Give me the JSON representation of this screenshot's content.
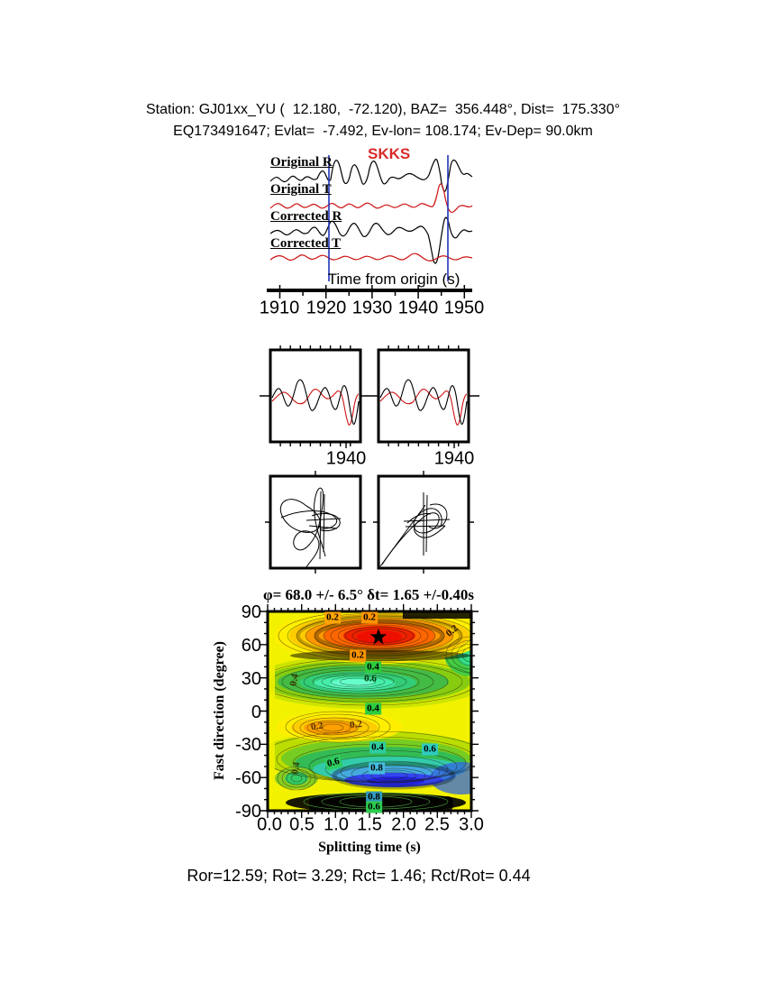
{
  "header": {
    "line1": "Station: GJ01xx_YU (  12.180,  -72.120), BAZ=  356.448°, Dist=  175.330°",
    "line2": "EQ173491647; Evlat=  -7.492, Ev-lon= 108.174; Ev-Dep= 90.0km"
  },
  "waveform_section": {
    "phase_label": "SKKS",
    "trace_labels": [
      "Original R",
      "Original T",
      "Corrected R",
      "Corrected T"
    ],
    "axis_label": "Time from origin (s)",
    "time_ticks": [
      "1910",
      "1920",
      "1930",
      "1940",
      "1950"
    ],
    "trace_colors": {
      "radial": "#000000",
      "transverse": "#cc1111"
    },
    "window_marker_color": "#2233bb"
  },
  "zoom_panels": {
    "left_time_tick": "1940",
    "right_time_tick": "1940"
  },
  "chart_data": {
    "type": "heatmap",
    "title": "φ= 68.0 +/- 6.5° δt= 1.65 +/-0.40s",
    "xlabel": "Splitting time (s)",
    "ylabel": "Fast direction (degree)",
    "xlim": [
      0.0,
      3.0
    ],
    "ylim": [
      -90,
      90
    ],
    "grid": false,
    "legend_position": "none",
    "x_ticks": [
      "0.0",
      "0.5",
      "1.0",
      "1.5",
      "2.0",
      "2.5",
      "3.0"
    ],
    "y_ticks": [
      "90",
      "60",
      "30",
      "0",
      "-30",
      "-60",
      "-90"
    ],
    "best_solution": {
      "fast_direction_deg": 68.0,
      "fast_direction_err_deg": 6.5,
      "split_time_s": 1.65,
      "split_time_err_s": 0.4,
      "marker": "star",
      "marker_x": 1.65,
      "marker_y": 68
    },
    "contour_labels": [
      {
        "value": "0.2",
        "x": 0.95,
        "y": 84
      },
      {
        "value": "0.2",
        "x": 1.5,
        "y": 84
      },
      {
        "value": "0.2",
        "x": 2.72,
        "y": 71
      },
      {
        "value": "0.2",
        "x": 1.3,
        "y": 51
      },
      {
        "value": "0.4",
        "x": 1.55,
        "y": 40
      },
      {
        "value": "0.6",
        "x": 1.5,
        "y": 29
      },
      {
        "value": "0.4",
        "x": 0.4,
        "y": 28
      },
      {
        "value": "0.4",
        "x": 1.55,
        "y": 2
      },
      {
        "value": "0.2",
        "x": 0.73,
        "y": -14
      },
      {
        "value": "0.2",
        "x": 1.3,
        "y": -13
      },
      {
        "value": "0.4",
        "x": 1.62,
        "y": -32
      },
      {
        "value": "0.6",
        "x": 2.38,
        "y": -35
      },
      {
        "value": "0.6",
        "x": 0.97,
        "y": -47
      },
      {
        "value": "0.8",
        "x": 1.6,
        "y": -52
      },
      {
        "value": "0.4",
        "x": 0.42,
        "y": -50
      },
      {
        "value": "0.8",
        "x": 1.57,
        "y": -77
      },
      {
        "value": "0.6",
        "x": 1.57,
        "y": -86
      }
    ],
    "palette": {
      "low": "#2222cc",
      "mid": "#33cc66",
      "high": "#ee1100",
      "background": "#f2f200"
    }
  },
  "footer": {
    "stats": "Ror=12.59; Rot= 3.29; Rct= 1.46; Rct/Rot= 0.44"
  }
}
